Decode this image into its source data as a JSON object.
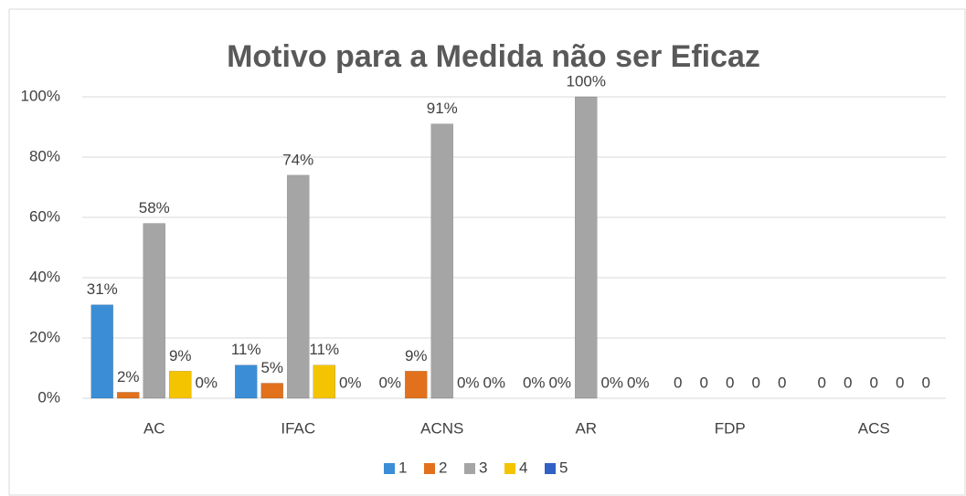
{
  "chart_data": {
    "type": "bar",
    "title": "Motivo para a Medida não ser Eficaz",
    "categories": [
      "AC",
      "IFAC",
      "ACNS",
      "AR",
      "FDP",
      "ACS"
    ],
    "series": [
      {
        "name": "1",
        "color": "#3b8ed6",
        "values": [
          31,
          11,
          0,
          0,
          0,
          0
        ],
        "value_labels": [
          "31%",
          "11%",
          "0%",
          "0%",
          "0",
          "0"
        ]
      },
      {
        "name": "2",
        "color": "#e2711d",
        "values": [
          2,
          5,
          9,
          0,
          0,
          0
        ],
        "value_labels": [
          "2%",
          "5%",
          "9%",
          "0%",
          "0",
          "0"
        ]
      },
      {
        "name": "3",
        "color": "#a5a5a5",
        "values": [
          58,
          74,
          91,
          100,
          0,
          0
        ],
        "value_labels": [
          "58%",
          "74%",
          "91%",
          "100%",
          "0",
          "0"
        ]
      },
      {
        "name": "4",
        "color": "#f5c400",
        "values": [
          9,
          11,
          0,
          0,
          0,
          0
        ],
        "value_labels": [
          "9%",
          "11%",
          "0%",
          "0%",
          "0",
          "0"
        ]
      },
      {
        "name": "5",
        "color": "#3260c4",
        "values": [
          0,
          0,
          0,
          0,
          0,
          0
        ],
        "value_labels": [
          "0%",
          "0%",
          "0%",
          "0%",
          "0",
          "0"
        ]
      }
    ],
    "ylim": [
      0,
      100
    ],
    "yticks": [
      {
        "value": 0,
        "label": "0%"
      },
      {
        "value": 20,
        "label": "20%"
      },
      {
        "value": 40,
        "label": "40%"
      },
      {
        "value": 60,
        "label": "60%"
      },
      {
        "value": 80,
        "label": "80%"
      },
      {
        "value": 100,
        "label": "100%"
      }
    ],
    "grid": true,
    "legend": "bottom"
  }
}
